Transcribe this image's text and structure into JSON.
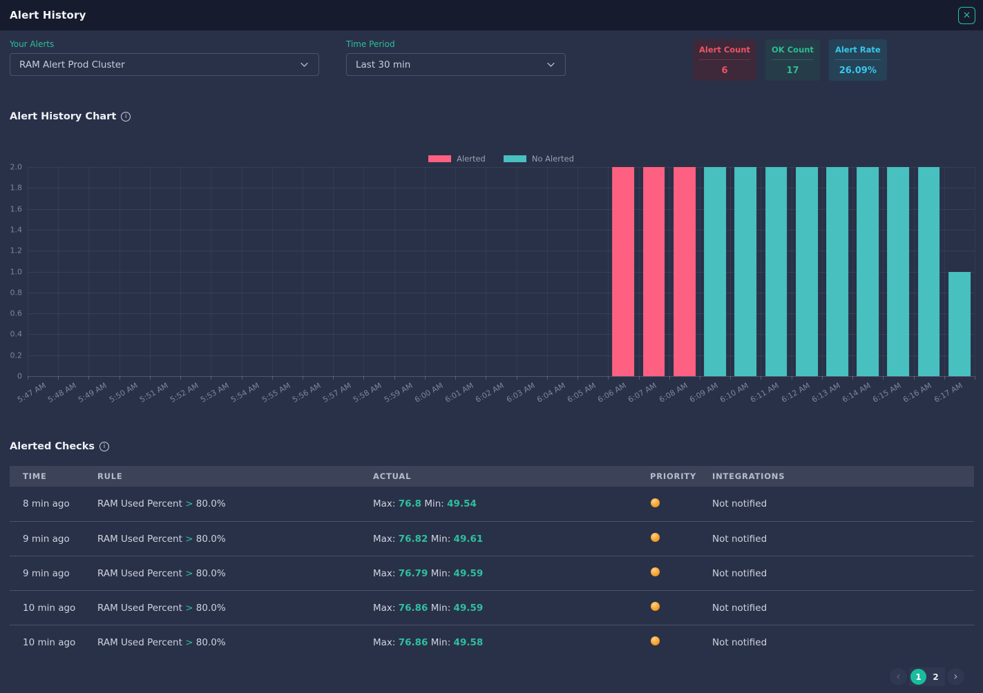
{
  "header": {
    "title": "Alert History",
    "close_icon": "×"
  },
  "icons": {
    "info": "i",
    "pagination_prev": "‹",
    "pagination_next": "›"
  },
  "filters": {
    "your_alerts": {
      "label": "Your Alerts",
      "value": "RAM Alert Prod Cluster"
    },
    "time_period": {
      "label": "Time Period",
      "value": "Last 30 min"
    }
  },
  "stats": [
    {
      "label": "Alert Count",
      "value": "6",
      "color": "#ef5365",
      "bg": "#3d2939"
    },
    {
      "label": "OK Count",
      "value": "17",
      "color": "#2dbd90",
      "bg": "#263c48"
    },
    {
      "label": "Alert Rate",
      "value": "26.09%",
      "color": "#38c7ea",
      "bg": "#254257"
    }
  ],
  "chart_section": {
    "title": "Alert History Chart"
  },
  "chart_data": {
    "type": "bar",
    "title": "Alert History Chart",
    "categories": [
      "5:47 AM",
      "5:48 AM",
      "5:49 AM",
      "5:50 AM",
      "5:51 AM",
      "5:52 AM",
      "5:53 AM",
      "5:54 AM",
      "5:55 AM",
      "5:56 AM",
      "5:57 AM",
      "5:58 AM",
      "5:59 AM",
      "6:00 AM",
      "6:01 AM",
      "6:02 AM",
      "6:03 AM",
      "6:04 AM",
      "6:05 AM",
      "6:06 AM",
      "6:07 AM",
      "6:08 AM",
      "6:09 AM",
      "6:10 AM",
      "6:11 AM",
      "6:12 AM",
      "6:13 AM",
      "6:14 AM",
      "6:15 AM",
      "6:16 AM",
      "6:17 AM"
    ],
    "series": [
      {
        "name": "Alerted",
        "color": "#fd6080",
        "values": [
          0,
          0,
          0,
          0,
          0,
          0,
          0,
          0,
          0,
          0,
          0,
          0,
          0,
          0,
          0,
          0,
          0,
          0,
          0,
          2,
          2,
          2,
          0,
          0,
          0,
          0,
          0,
          0,
          0,
          0,
          0
        ]
      },
      {
        "name": "No Alerted",
        "color": "#48c0bf",
        "values": [
          0,
          0,
          0,
          0,
          0,
          0,
          0,
          0,
          0,
          0,
          0,
          0,
          0,
          0,
          0,
          0,
          0,
          0,
          0,
          0,
          0,
          0,
          2,
          2,
          2,
          2,
          2,
          2,
          2,
          2,
          1
        ]
      }
    ],
    "xlabel": "",
    "ylabel": "",
    "ylim": [
      0,
      2
    ],
    "y_tick_labels": [
      "2.0",
      "1.8",
      "1.6",
      "1.4",
      "1.2",
      "1.0",
      "0.8",
      "0.6",
      "0.4",
      "0.2",
      "0"
    ],
    "grid": true,
    "legend_position": "top"
  },
  "table_section": {
    "title": "Alerted Checks",
    "columns": [
      "TIME",
      "RULE",
      "ACTUAL",
      "PRIORITY",
      "INTEGRATIONS"
    ],
    "labels": {
      "max": "Max:",
      "min": "Min:"
    },
    "rows": [
      {
        "time": "8 min ago",
        "rule": {
          "metric": "RAM Used Percent",
          "operator": ">",
          "threshold": "80.0%"
        },
        "actual": {
          "max": "76.8",
          "min": "49.54"
        },
        "priority": "orange",
        "integrations": "Not notified"
      },
      {
        "time": "9 min ago",
        "rule": {
          "metric": "RAM Used Percent",
          "operator": ">",
          "threshold": "80.0%"
        },
        "actual": {
          "max": "76.82",
          "min": "49.61"
        },
        "priority": "orange",
        "integrations": "Not notified"
      },
      {
        "time": "9 min ago",
        "rule": {
          "metric": "RAM Used Percent",
          "operator": ">",
          "threshold": "80.0%"
        },
        "actual": {
          "max": "76.79",
          "min": "49.59"
        },
        "priority": "orange",
        "integrations": "Not notified"
      },
      {
        "time": "10 min ago",
        "rule": {
          "metric": "RAM Used Percent",
          "operator": ">",
          "threshold": "80.0%"
        },
        "actual": {
          "max": "76.86",
          "min": "49.59"
        },
        "priority": "orange",
        "integrations": "Not notified"
      },
      {
        "time": "10 min ago",
        "rule": {
          "metric": "RAM Used Percent",
          "operator": ">",
          "threshold": "80.0%"
        },
        "actual": {
          "max": "76.86",
          "min": "49.58"
        },
        "priority": "orange",
        "integrations": "Not notified"
      }
    ]
  },
  "pagination": {
    "pages": [
      "1",
      "2"
    ],
    "current": "1",
    "prev_icon": "‹",
    "next_icon": "›"
  }
}
